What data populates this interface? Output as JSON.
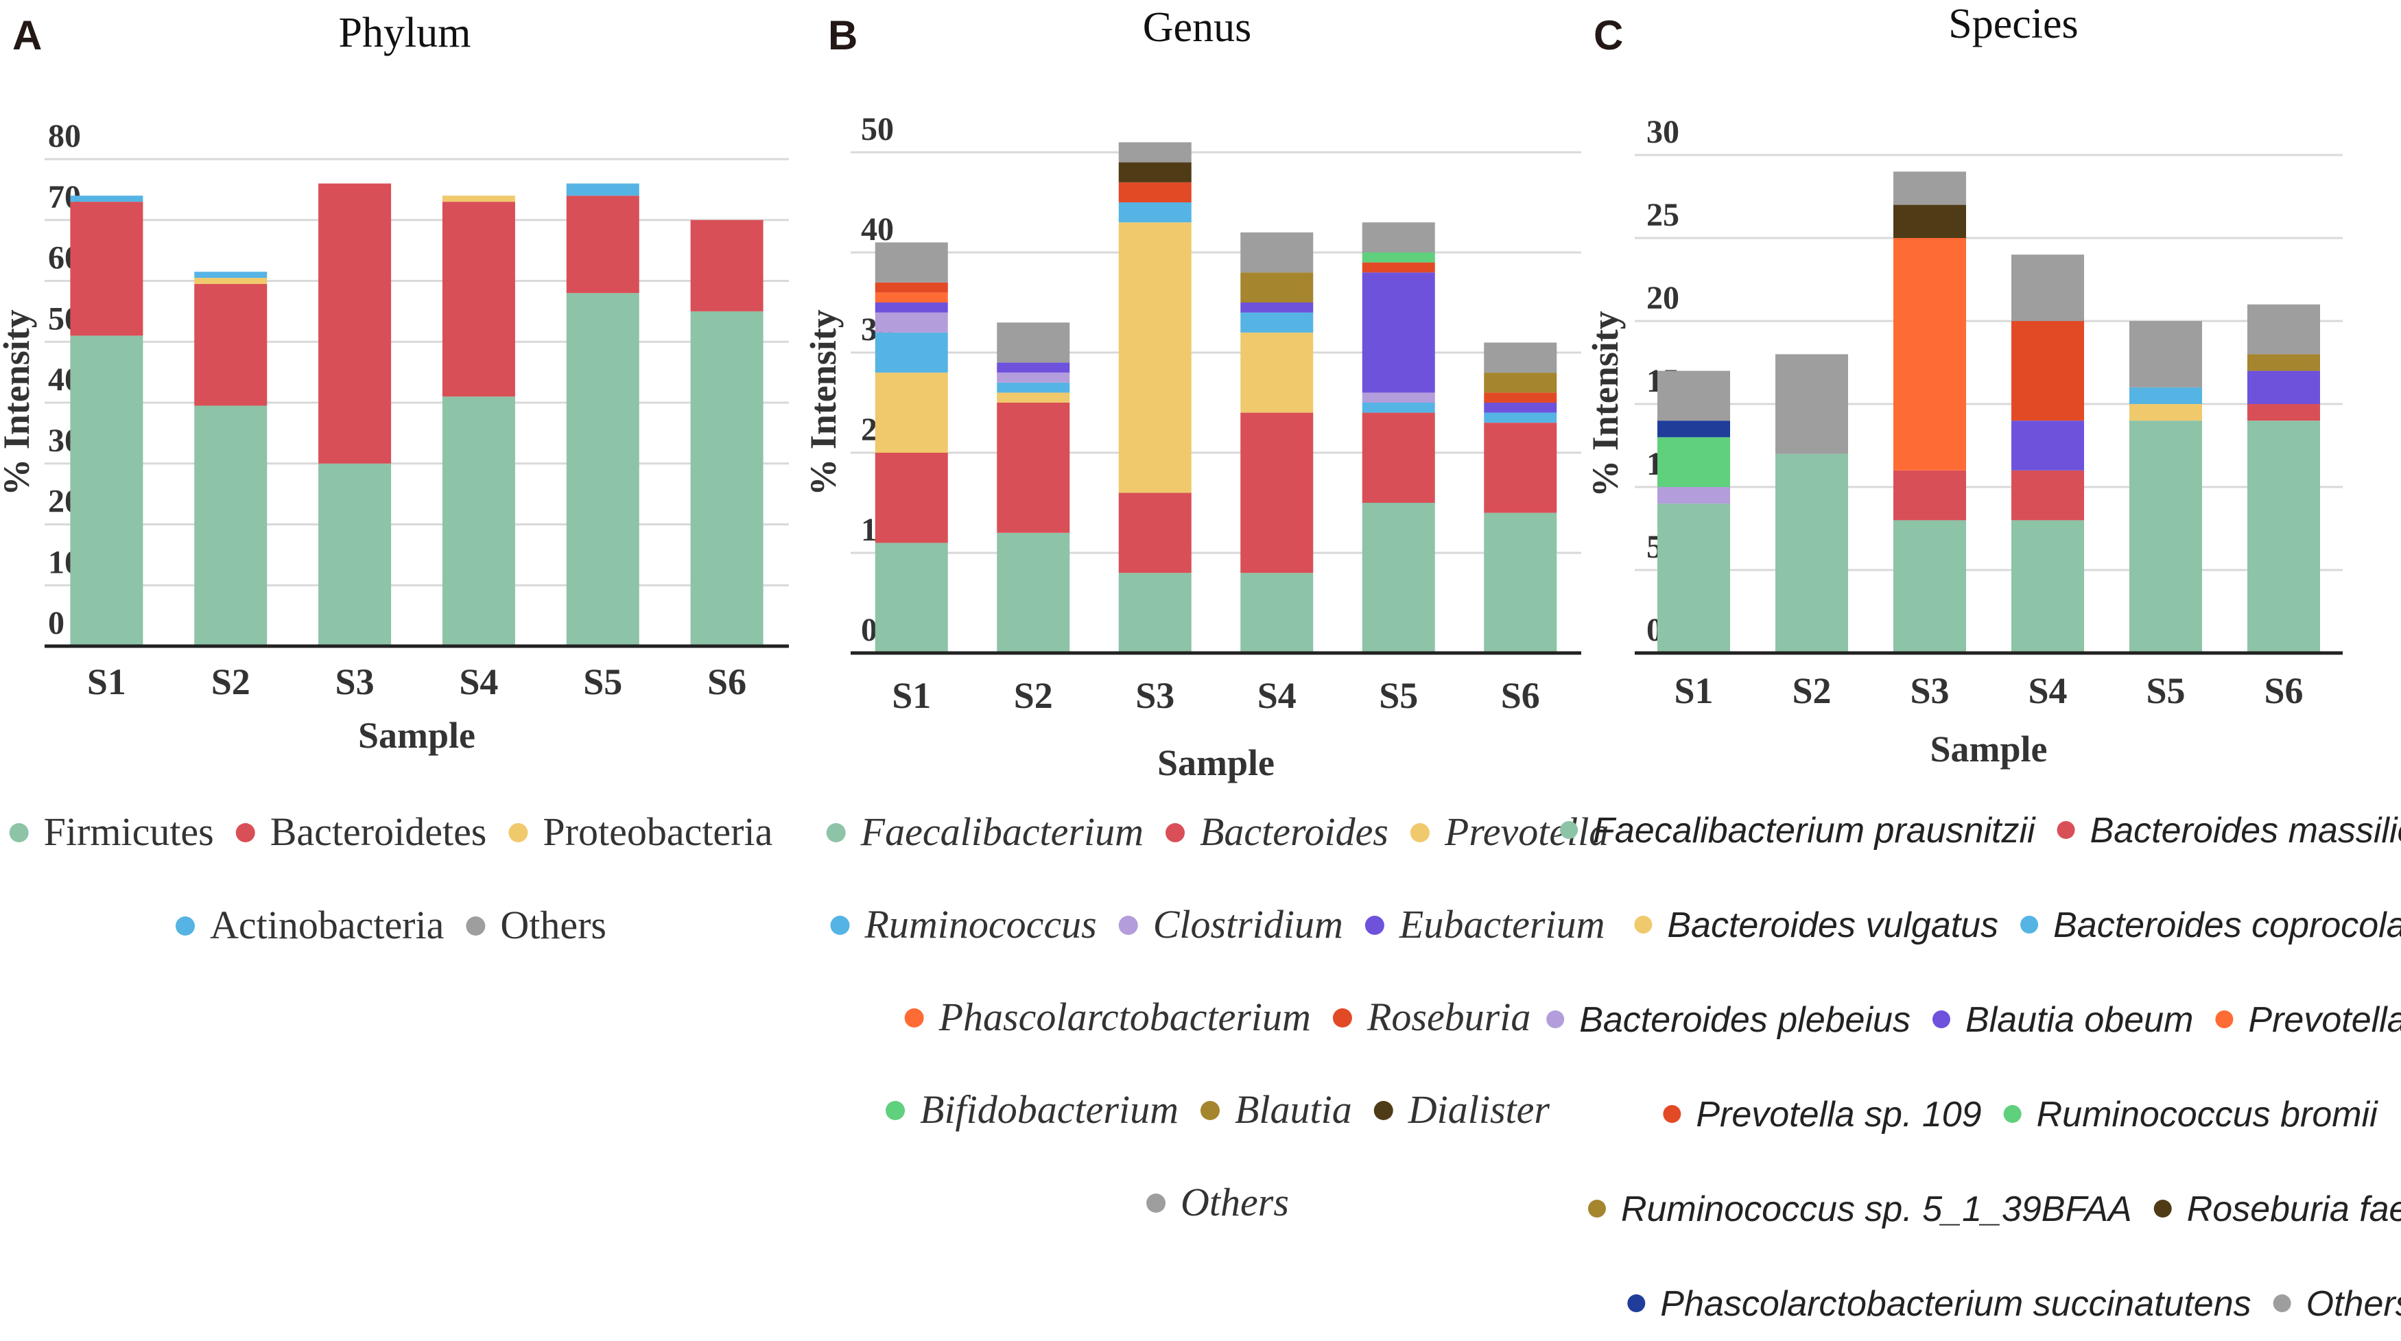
{
  "colors": {
    "teal": "#8dc3a7",
    "red": "#d94f57",
    "yellow": "#f0c96c",
    "blue": "#55b4e4",
    "gray": "#9e9e9e",
    "lavender": "#b39ddb",
    "purple": "#6e52dc",
    "orange": "#ff6b35",
    "redorange": "#e24a26",
    "green": "#5fd07c",
    "olive": "#a5852e",
    "darkbrown": "#4f3c17",
    "navy": "#1f3d99"
  },
  "chart_data": [
    {
      "panel": "A",
      "title": "Phylum",
      "type": "bar",
      "stacked": true,
      "categories": [
        "S1",
        "S2",
        "S3",
        "S4",
        "S5",
        "S6"
      ],
      "xlabel": "Sample",
      "ylabel": "% Intensity",
      "ylim": [
        0,
        80
      ],
      "yticks": [
        "0",
        "10",
        "20",
        "30",
        "40",
        "50",
        "60",
        "70",
        "80"
      ],
      "series": [
        {
          "name": "Firmicutes",
          "color": "#8dc3a7",
          "values": [
            51,
            39.5,
            30,
            41,
            58,
            55
          ]
        },
        {
          "name": "Bacteroidetes",
          "color": "#d94f57",
          "values": [
            22,
            20,
            46,
            32,
            16,
            15
          ]
        },
        {
          "name": "Proteobacteria",
          "color": "#f0c96c",
          "values": [
            0,
            1,
            0,
            1,
            0,
            0
          ]
        },
        {
          "name": "Actinobacteria",
          "color": "#55b4e4",
          "values": [
            1,
            1,
            0,
            0,
            2,
            0
          ]
        },
        {
          "name": "Others",
          "color": "#9e9e9e",
          "values": [
            0,
            0,
            0,
            0,
            0,
            0
          ]
        }
      ],
      "legend_rows": [
        [
          "Firmicutes",
          "Bacteroidetes",
          "Proteobacteria"
        ],
        [
          "Actinobacteria",
          "Others"
        ]
      ]
    },
    {
      "panel": "B",
      "title": "Genus",
      "type": "bar",
      "stacked": true,
      "categories": [
        "S1",
        "S2",
        "S3",
        "S4",
        "S5",
        "S6"
      ],
      "xlabel": "Sample",
      "ylabel": "% Intensity",
      "ylim": [
        0,
        50
      ],
      "yticks": [
        "0",
        "10",
        "20",
        "30",
        "40",
        "50"
      ],
      "series": [
        {
          "name": "Faecalibacterium",
          "color": "#8dc3a7",
          "values": [
            11,
            12,
            8,
            8,
            15,
            14
          ]
        },
        {
          "name": "Bacteroides",
          "color": "#d94f57",
          "values": [
            9,
            13,
            8,
            16,
            9,
            9
          ]
        },
        {
          "name": "Prevotella",
          "color": "#f0c96c",
          "values": [
            8,
            1,
            27,
            8,
            0,
            0
          ]
        },
        {
          "name": "Ruminococcus",
          "color": "#55b4e4",
          "values": [
            4,
            1,
            2,
            2,
            1,
            1
          ]
        },
        {
          "name": "Clostridium",
          "color": "#b39ddb",
          "values": [
            2,
            1,
            0,
            0,
            1,
            0
          ]
        },
        {
          "name": "Eubacterium",
          "color": "#6e52dc",
          "values": [
            1,
            1,
            0,
            1,
            12,
            1
          ]
        },
        {
          "name": "Phascolarctobacterium",
          "color": "#ff6b35",
          "values": [
            1,
            0,
            0,
            0,
            0,
            0
          ]
        },
        {
          "name": "Roseburia",
          "color": "#e24a26",
          "values": [
            1,
            0,
            2,
            0,
            1,
            1
          ]
        },
        {
          "name": "Bifidobacterium",
          "color": "#5fd07c",
          "values": [
            0,
            0,
            0,
            0,
            1,
            0
          ]
        },
        {
          "name": "Blautia",
          "color": "#a5852e",
          "values": [
            0,
            0,
            0,
            3,
            0,
            2
          ]
        },
        {
          "name": "Dialister",
          "color": "#4f3c17",
          "values": [
            0,
            0,
            2,
            0,
            0,
            0
          ]
        },
        {
          "name": "Others",
          "color": "#9e9e9e",
          "values": [
            4,
            4,
            2,
            4,
            3,
            3
          ]
        }
      ],
      "legend_rows": [
        [
          "Faecalibacterium",
          "Bacteroides",
          "Prevotella"
        ],
        [
          "Ruminococcus",
          "Clostridium",
          "Eubacterium"
        ],
        [
          "Phascolarctobacterium",
          "Roseburia"
        ],
        [
          "Bifidobacterium",
          "Blautia",
          "Dialister"
        ],
        [
          "Others"
        ]
      ]
    },
    {
      "panel": "C",
      "title": "Species",
      "type": "bar",
      "stacked": true,
      "categories": [
        "S1",
        "S2",
        "S3",
        "S4",
        "S5",
        "S6"
      ],
      "xlabel": "Sample",
      "ylabel": "% Intensity",
      "ylim": [
        0,
        30
      ],
      "yticks": [
        "0",
        "5",
        "10",
        "15",
        "20",
        "25",
        "30"
      ],
      "series": [
        {
          "name": "Faecalibacterium prausnitzii",
          "color": "#8dc3a7",
          "values": [
            9,
            12,
            8,
            8,
            14,
            14
          ]
        },
        {
          "name": "Bacteroides massiliensis",
          "color": "#d94f57",
          "values": [
            0,
            0,
            3,
            3,
            0,
            1
          ]
        },
        {
          "name": "Bacteroides vulgatus",
          "color": "#f0c96c",
          "values": [
            0,
            0,
            0,
            0,
            1,
            0
          ]
        },
        {
          "name": "Bacteroides coprocola",
          "color": "#55b4e4",
          "values": [
            0,
            0,
            0,
            0,
            1,
            0
          ]
        },
        {
          "name": "Bacteroides plebeius",
          "color": "#b39ddb",
          "values": [
            1,
            0,
            0,
            0,
            0,
            0
          ]
        },
        {
          "name": "Blautia obeum",
          "color": "#6e52dc",
          "values": [
            0,
            0,
            0,
            3,
            0,
            2
          ]
        },
        {
          "name": "Prevotella copri",
          "color": "#ff6b35",
          "values": [
            0,
            0,
            14,
            0,
            0,
            0
          ]
        },
        {
          "name": "Prevotella sp. 109",
          "color": "#e24a26",
          "values": [
            0,
            0,
            0,
            6,
            0,
            0
          ]
        },
        {
          "name": "Ruminococcus bromii",
          "color": "#5fd07c",
          "values": [
            3,
            0,
            0,
            0,
            0,
            0
          ]
        },
        {
          "name": "Ruminococcus sp. 5_1_39BFAA",
          "color": "#a5852e",
          "values": [
            0,
            0,
            0,
            0,
            0,
            1
          ]
        },
        {
          "name": "Roseburia faecis",
          "color": "#4f3c17",
          "values": [
            0,
            0,
            2,
            0,
            0,
            0
          ]
        },
        {
          "name": "Phascolarctobacterium succinatutens",
          "color": "#1f3d99",
          "values": [
            1,
            0,
            0,
            0,
            0,
            0
          ]
        },
        {
          "name": "Others",
          "color": "#9e9e9e",
          "values": [
            3,
            6,
            2,
            4,
            4,
            3
          ]
        }
      ],
      "legend_rows": [
        [
          "Faecalibacterium prausnitzii",
          "Bacteroides massiliensis"
        ],
        [
          "Bacteroides vulgatus",
          "Bacteroides coprocola"
        ],
        [
          "Bacteroides plebeius",
          "Blautia obeum",
          "Prevotella copri"
        ],
        [
          "Prevotella sp. 109",
          "Ruminococcus bromii"
        ],
        [
          "Ruminococcus sp. 5_1_39BFAA",
          "Roseburia faecis"
        ],
        [
          "Phascolarctobacterium succinatutens",
          "Others"
        ]
      ]
    }
  ]
}
